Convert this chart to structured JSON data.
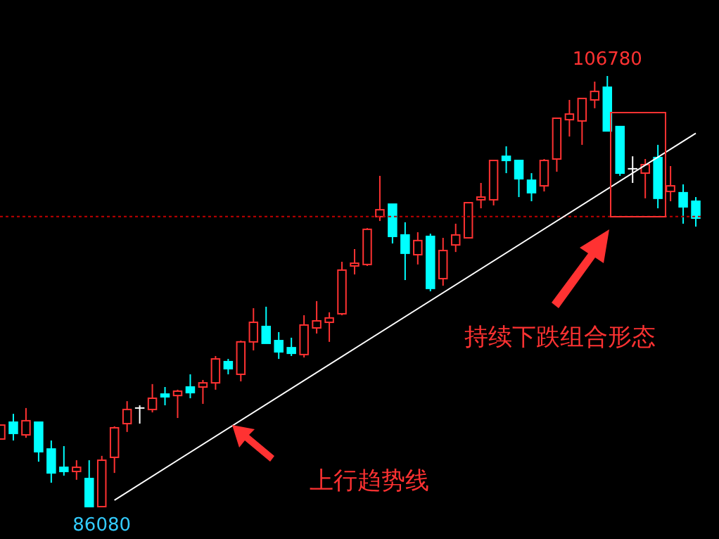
{
  "chart_data": {
    "type": "candlestick",
    "categories": [
      null,
      null,
      null,
      null,
      null,
      null,
      null,
      null,
      null,
      null,
      null,
      null,
      null,
      null,
      null,
      null,
      null,
      null,
      null,
      null,
      null,
      null,
      null,
      null,
      null,
      null,
      null,
      null,
      null,
      null,
      null,
      null,
      null,
      null,
      null,
      null,
      null,
      null,
      null,
      null,
      null,
      null,
      null,
      null,
      null,
      null,
      null,
      null,
      null,
      null,
      null,
      null,
      null,
      null,
      null,
      null
    ],
    "ohlc": [
      [
        89330,
        90000,
        89330,
        90000
      ],
      [
        90140,
        90540,
        89260,
        89600
      ],
      [
        89530,
        90820,
        89390,
        90210
      ],
      [
        90140,
        90140,
        88240,
        88720
      ],
      [
        88850,
        89260,
        87230,
        87700
      ],
      [
        87970,
        88990,
        87570,
        87770
      ],
      [
        87770,
        88310,
        87370,
        87970
      ],
      [
        87430,
        88310,
        86080,
        86080
      ],
      [
        86080,
        88520,
        86080,
        88310
      ],
      [
        88450,
        89940,
        87700,
        89870
      ],
      [
        90070,
        91150,
        89670,
        90750
      ],
      [
        90820,
        90950,
        90070,
        90820
      ],
      [
        90750,
        91970,
        90610,
        91290
      ],
      [
        91490,
        91830,
        90950,
        91360
      ],
      [
        91420,
        91700,
        90340,
        91630
      ],
      [
        91830,
        92440,
        91290,
        91560
      ],
      [
        91830,
        92170,
        91020,
        92030
      ],
      [
        92030,
        93320,
        91700,
        93180
      ],
      [
        93050,
        93180,
        92440,
        92710
      ],
      [
        92440,
        94060,
        92100,
        94000
      ],
      [
        94000,
        95620,
        93590,
        94940
      ],
      [
        94740,
        95690,
        93930,
        93930
      ],
      [
        94060,
        94470,
        93180,
        93520
      ],
      [
        93720,
        94200,
        93320,
        93450
      ],
      [
        93390,
        95280,
        93250,
        94810
      ],
      [
        94670,
        95960,
        94400,
        95010
      ],
      [
        94940,
        95420,
        94000,
        95150
      ],
      [
        95350,
        97850,
        95280,
        97450
      ],
      [
        97650,
        98460,
        97240,
        97780
      ],
      [
        97720,
        99470,
        97650,
        99410
      ],
      [
        100020,
        101980,
        99810,
        100350
      ],
      [
        100620,
        100620,
        98730,
        99070
      ],
      [
        99140,
        99750,
        96970,
        98260
      ],
      [
        98190,
        99270,
        97720,
        98870
      ],
      [
        99070,
        99200,
        96430,
        96570
      ],
      [
        97040,
        99000,
        96700,
        98390
      ],
      [
        98660,
        99680,
        98320,
        99140
      ],
      [
        99000,
        100690,
        99000,
        100690
      ],
      [
        100830,
        101640,
        100420,
        100960
      ],
      [
        100830,
        102720,
        100560,
        102720
      ],
      [
        102920,
        103400,
        102110,
        102720
      ],
      [
        102720,
        102720,
        100960,
        101840
      ],
      [
        101770,
        102110,
        100760,
        101170
      ],
      [
        101500,
        102790,
        101230,
        102720
      ],
      [
        102790,
        104750,
        102180,
        104750
      ],
      [
        104680,
        105630,
        103870,
        104950
      ],
      [
        104620,
        105700,
        103470,
        105700
      ],
      [
        105630,
        106510,
        105230,
        106040
      ],
      [
        106240,
        106780,
        104140,
        104140
      ],
      [
        104350,
        104350,
        101980,
        102110
      ],
      [
        102320,
        102920,
        101640,
        102320
      ],
      [
        102110,
        102790,
        100900,
        102520
      ],
      [
        102860,
        103470,
        100420,
        100900
      ],
      [
        101230,
        102450,
        100760,
        101500
      ],
      [
        101170,
        101570,
        99680,
        100490
      ],
      [
        100760,
        100960,
        99540,
        99950
      ]
    ],
    "colors": [
      "#ff3232",
      "#00ffff",
      "#ff3232",
      "#00ffff",
      "#00ffff",
      "#00ffff",
      "#ff3232",
      "#00ffff",
      "#ff3232",
      "#ff3232",
      "#ff3232",
      "#ffffff",
      "#ff3232",
      "#00ffff",
      "#ff3232",
      "#00ffff",
      "#ff3232",
      "#ff3232",
      "#00ffff",
      "#ff3232",
      "#ff3232",
      "#00ffff",
      "#00ffff",
      "#00ffff",
      "#ff3232",
      "#ff3232",
      "#ff3232",
      "#ff3232",
      "#ff3232",
      "#ff3232",
      "#ff3232",
      "#00ffff",
      "#00ffff",
      "#ff3232",
      "#00ffff",
      "#ff3232",
      "#ff3232",
      "#ff3232",
      "#ff3232",
      "#ff3232",
      "#00ffff",
      "#00ffff",
      "#00ffff",
      "#ff3232",
      "#ff3232",
      "#ff3232",
      "#ff3232",
      "#ff3232",
      "#00ffff",
      "#00ffff",
      "#ffffff",
      "#ff3232",
      "#00ffff",
      "#ff3232",
      "#00ffff",
      "#00ffff"
    ],
    "series": [
      {
        "type": "line",
        "color": "#ffffff",
        "values": [
          null,
          null,
          null,
          null,
          null,
          null,
          null,
          null,
          null,
          86390,
          null,
          null,
          null,
          null,
          null,
          null,
          null,
          null,
          null,
          null,
          null,
          null,
          null,
          null,
          null,
          null,
          null,
          null,
          null,
          null,
          null,
          null,
          null,
          null,
          null,
          null,
          null,
          null,
          null,
          null,
          null,
          null,
          null,
          null,
          null,
          null,
          null,
          null,
          null,
          null,
          null,
          null,
          null,
          null,
          null,
          104030
        ]
      }
    ],
    "ref_lines": [
      {
        "axis": "y",
        "value": 100020,
        "color": "#c00000",
        "line_style": "dotted"
      }
    ],
    "annotations": [
      {
        "text": "106780",
        "y": 106780
      },
      {
        "text": "86080",
        "y": 86080
      },
      "持续下跌组合形态",
      "上行趋势线"
    ]
  }
}
